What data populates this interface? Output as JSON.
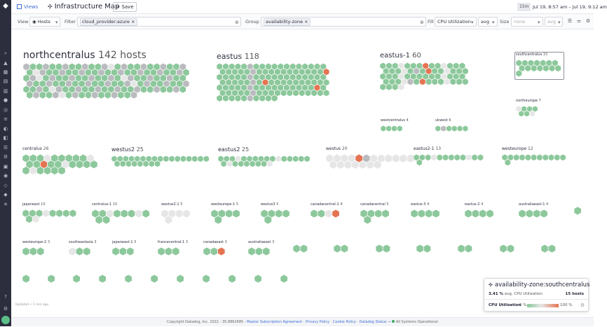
{
  "topbar": {
    "views_label": "Views",
    "title": "Infrastructure Map",
    "save_label": "Save",
    "time_badge": "15m",
    "time_range": "Jul 19, 8:57 am – Jul 19, 9:12 am"
  },
  "filterbar": {
    "view_label": "View",
    "view_value": "Hosts",
    "filter_label": "Filter",
    "filter_tag": "cloud_provider:azure",
    "group_label": "Group",
    "group_tag": "availability-zone",
    "fill_label": "Fill",
    "fill_metric": "CPU Utilization",
    "fill_agg": "avg",
    "size_label": "Size",
    "size_metric": "none",
    "size_agg": "avg"
  },
  "colors": {
    "green": "#8cc89b",
    "gray": "#b9bbbe",
    "light": "#e6e6e6",
    "orange": "#e47452",
    "outline": "#ffffff"
  },
  "groups": [
    {
      "name": "northcentralus",
      "count": "142 hosts",
      "cols": 25,
      "hosts": 142,
      "orange": [],
      "gray_every": 7,
      "light_every": 11
    },
    {
      "name": "eastus",
      "count": "118",
      "cols": 18,
      "hosts": 118,
      "orange": [
        35,
        61,
        88
      ],
      "gray_every": 6,
      "light_every": 3
    },
    {
      "name": "eastus-1",
      "count": "60",
      "cols": 14,
      "hosts": 60,
      "orange": [
        7,
        21,
        48
      ],
      "gray_every": 9,
      "light_every": 5
    },
    {
      "name": "southcentralus",
      "count": "15",
      "cols": 7,
      "hosts": 15,
      "orange": [],
      "gray_every": 0,
      "light_every": 0
    },
    {
      "name": "westcentralus",
      "count": "4",
      "cols": 4,
      "hosts": 4,
      "orange": [],
      "gray_every": 0,
      "light_every": 0
    },
    {
      "name": "ukwest",
      "count": "6",
      "cols": 6,
      "hosts": 6,
      "orange": [],
      "gray_every": 2,
      "light_every": 0
    },
    {
      "name": "northeurope",
      "count": "7",
      "cols": 4,
      "hosts": 7,
      "orange": [],
      "gray_every": 0,
      "light_every": 4
    },
    {
      "name": "centralus",
      "count": "26",
      "cols": 10,
      "hosts": 26,
      "orange": [
        12
      ],
      "gray_every": 0,
      "light_every": 4
    },
    {
      "name": "westus2",
      "count": "25",
      "cols": 17,
      "hosts": 25,
      "orange": [],
      "gray_every": 0,
      "light_every": 0
    },
    {
      "name": "eastus2",
      "count": "25",
      "cols": 16,
      "hosts": 25,
      "orange": [],
      "gray_every": 7,
      "light_every": 5
    },
    {
      "name": "westus",
      "count": "20",
      "cols": 13,
      "hosts": 20,
      "orange": [
        4
      ],
      "gray_every": 5,
      "light_every": 3
    },
    {
      "name": "eastus2-1",
      "count": "13",
      "cols": 12,
      "hosts": 13,
      "orange": [],
      "gray_every": 0,
      "light_every": 4
    },
    {
      "name": "westeurope",
      "count": "12",
      "cols": 11,
      "hosts": 12,
      "orange": [],
      "gray_every": 0,
      "light_every": 3
    },
    {
      "name": "japaneast",
      "count": "10",
      "cols": 8,
      "hosts": 10,
      "orange": [],
      "gray_every": 0,
      "light_every": 4
    },
    {
      "name": "centralus-1",
      "count": "10",
      "cols": 8,
      "hosts": 10,
      "orange": [],
      "gray_every": 0,
      "light_every": 2
    },
    {
      "name": "westus2-1",
      "count": "5",
      "cols": 4,
      "hosts": 5,
      "orange": [],
      "gray_every": 0,
      "light_every": 3
    },
    {
      "name": "westeurope-1",
      "count": "5",
      "cols": 4,
      "hosts": 5,
      "orange": [],
      "gray_every": 0,
      "light_every": 0
    },
    {
      "name": "westus3",
      "count": "5",
      "cols": 4,
      "hosts": 5,
      "orange": [],
      "gray_every": 0,
      "light_every": 0
    },
    {
      "name": "canadacentral-1",
      "count": "4",
      "cols": 4,
      "hosts": 4,
      "orange": [
        3
      ],
      "gray_every": 0,
      "light_every": 2
    },
    {
      "name": "canadacentral",
      "count": "5",
      "cols": 4,
      "hosts": 5,
      "orange": [],
      "gray_every": 0,
      "light_every": 0
    },
    {
      "name": "eastus-3",
      "count": "4",
      "cols": 4,
      "hosts": 4,
      "orange": [],
      "gray_every": 0,
      "light_every": 0
    },
    {
      "name": "eastus-2",
      "count": "4",
      "cols": 4,
      "hosts": 4,
      "orange": [],
      "gray_every": 0,
      "light_every": 0
    },
    {
      "name": "australiaeast-1",
      "count": "4",
      "cols": 4,
      "hosts": 4,
      "orange": [],
      "gray_every": 0,
      "light_every": 0
    },
    {
      "name": "",
      "count": "",
      "cols": 1,
      "hosts": 1,
      "orange": [],
      "gray_every": 0,
      "light_every": 0
    },
    {
      "name": "westeurope-2",
      "count": "3",
      "cols": 3,
      "hosts": 3,
      "orange": [],
      "gray_every": 0,
      "light_every": 0
    },
    {
      "name": "southeastasia",
      "count": "3",
      "cols": 3,
      "hosts": 3,
      "orange": [],
      "gray_every": 0,
      "light_every": 1
    },
    {
      "name": "japaneast-1",
      "count": "3",
      "cols": 3,
      "hosts": 3,
      "orange": [],
      "gray_every": 0,
      "light_every": 0
    },
    {
      "name": "francecentral-1",
      "count": "3",
      "cols": 3,
      "hosts": 3,
      "orange": [],
      "gray_every": 0,
      "light_every": 0
    },
    {
      "name": "canadaeast",
      "count": "3",
      "cols": 3,
      "hosts": 3,
      "orange": [
        2
      ],
      "gray_every": 0,
      "light_every": 0
    },
    {
      "name": "australiaeast",
      "count": "3",
      "cols": 3,
      "hosts": 3,
      "orange": [],
      "gray_every": 0,
      "light_every": 0
    },
    {
      "name": "",
      "count": "",
      "cols": 2,
      "hosts": 2,
      "orange": [],
      "gray_every": 0,
      "light_every": 0
    },
    {
      "name": "",
      "count": "",
      "cols": 2,
      "hosts": 2,
      "orange": [],
      "gray_every": 0,
      "light_every": 0
    },
    {
      "name": "",
      "count": "",
      "cols": 2,
      "hosts": 2,
      "orange": [],
      "gray_every": 0,
      "light_every": 0
    },
    {
      "name": "",
      "count": "",
      "cols": 2,
      "hosts": 2,
      "orange": [],
      "gray_every": 0,
      "light_every": 0
    },
    {
      "name": "",
      "count": "",
      "cols": 2,
      "hosts": 2,
      "orange": [],
      "gray_every": 0,
      "light_every": 0
    },
    {
      "name": "",
      "count": "",
      "cols": 2,
      "hosts": 2,
      "orange": [],
      "gray_every": 0,
      "light_every": 0
    },
    {
      "name": "",
      "count": "",
      "cols": 2,
      "hosts": 2,
      "orange": [],
      "gray_every": 0,
      "light_every": 0
    },
    {
      "name": "",
      "count": "",
      "cols": 1,
      "hosts": 1,
      "orange": [],
      "gray_every": 0,
      "light_every": 0
    },
    {
      "name": "",
      "count": "",
      "cols": 1,
      "hosts": 1,
      "orange": [],
      "gray_every": 0,
      "light_every": 0
    },
    {
      "name": "",
      "count": "",
      "cols": 1,
      "hosts": 1,
      "orange": [],
      "gray_every": 0,
      "light_every": 0
    },
    {
      "name": "",
      "count": "",
      "cols": 1,
      "hosts": 1,
      "orange": [],
      "gray_every": 0,
      "light_every": 0
    },
    {
      "name": "",
      "count": "",
      "cols": 1,
      "hosts": 1,
      "orange": [],
      "gray_every": 0,
      "light_every": 0
    },
    {
      "name": "",
      "count": "",
      "cols": 1,
      "hosts": 1,
      "orange": [],
      "gray_every": 0,
      "light_every": 0
    },
    {
      "name": "",
      "count": "",
      "cols": 1,
      "hosts": 1,
      "orange": [],
      "gray_every": 0,
      "light_every": 0
    },
    {
      "name": "",
      "count": "",
      "cols": 1,
      "hosts": 1,
      "orange": [],
      "gray_every": 0,
      "light_every": 0
    },
    {
      "name": "",
      "count": "",
      "cols": 1,
      "hosts": 1,
      "orange": [],
      "gray_every": 0,
      "light_every": 0
    },
    {
      "name": "",
      "count": "",
      "cols": 1,
      "hosts": 1,
      "orange": [],
      "gray_every": 0,
      "light_every": 0
    },
    {
      "name": "",
      "count": "",
      "cols": 1,
      "hosts": 1,
      "orange": [],
      "gray_every": 0,
      "light_every": 0
    }
  ],
  "updated_text": "Updated • 1 min ago",
  "popup": {
    "title": "availability-zone:southcentralus",
    "value": "3.41 %",
    "value_suffix": "avg. CPU Utilization",
    "hosts": "15 hosts",
    "metric": "CPU Utilization",
    "min": "0 %",
    "max": "100 %"
  },
  "footer": {
    "copyright": "Copyright Datadog, Inc. 2022 - 35.8862685 -",
    "link1": "Master Subscription Agreement",
    "link2": "Privacy Policy",
    "link3": "Cookie Policy",
    "link4": "Datadog Status →",
    "status": "All Systems Operational"
  }
}
